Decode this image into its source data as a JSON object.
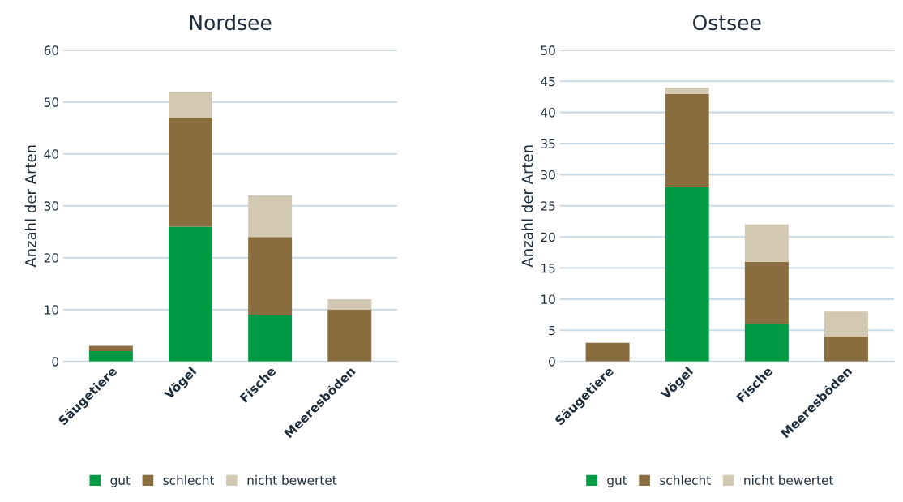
{
  "chart_data": [
    {
      "type": "bar",
      "title": "Nordsee",
      "ylabel": "Anzahl der Arten",
      "categories": [
        "Säugetiere",
        "Vögel",
        "Fische",
        "Meeresböden"
      ],
      "stacked": true,
      "ylim": [
        0,
        60
      ],
      "yticks": [
        0,
        10,
        20,
        30,
        40,
        50,
        60
      ],
      "grid": "y",
      "legend": "bottom",
      "series": [
        {
          "name": "gut",
          "color": "#009a44",
          "values": [
            2,
            26,
            9,
            0
          ]
        },
        {
          "name": "schlecht",
          "color": "#8a6d3f",
          "values": [
            1,
            21,
            15,
            10
          ]
        },
        {
          "name": "nicht bewertet",
          "color": "#d3c8b2",
          "values": [
            0,
            5,
            8,
            2
          ]
        }
      ]
    },
    {
      "type": "bar",
      "title": "Ostsee",
      "ylabel": "Anzahl der Arten",
      "categories": [
        "Säugetiere",
        "Vögel",
        "Fische",
        "Meeresböden"
      ],
      "stacked": true,
      "ylim": [
        0,
        50
      ],
      "yticks": [
        0,
        5,
        10,
        15,
        20,
        25,
        30,
        35,
        40,
        45,
        50
      ],
      "grid": "y",
      "legend": "bottom",
      "series": [
        {
          "name": "gut",
          "color": "#009a44",
          "values": [
            0,
            28,
            6,
            0
          ]
        },
        {
          "name": "schlecht",
          "color": "#8a6d3f",
          "values": [
            3,
            15,
            10,
            4
          ]
        },
        {
          "name": "nicht bewertet",
          "color": "#d3c8b2",
          "values": [
            0,
            1,
            6,
            4
          ]
        }
      ]
    }
  ]
}
